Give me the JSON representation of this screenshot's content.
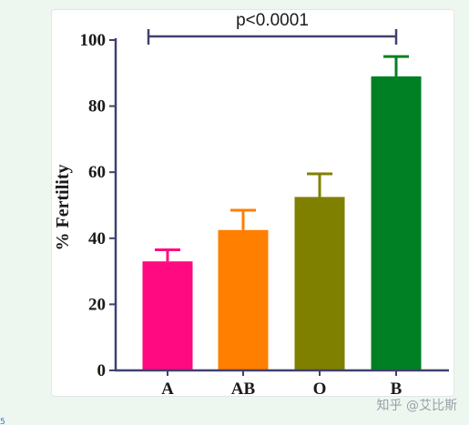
{
  "chart_data": {
    "type": "bar",
    "categories": [
      "A",
      "AB",
      "O",
      "B"
    ],
    "values": [
      33,
      42.5,
      52.5,
      89
    ],
    "errors": [
      3.5,
      6,
      7,
      6
    ],
    "colors": [
      "#ff0a80",
      "#ff7f00",
      "#808000",
      "#008024"
    ],
    "ylabel": "% Fertility",
    "xlabel": "",
    "ylim": [
      0,
      100
    ],
    "yticks": [
      0,
      20,
      40,
      60,
      80,
      100
    ],
    "grid": false,
    "annotation": {
      "text": "p<0.0001",
      "from": "A",
      "to": "B"
    }
  },
  "watermark": "知乎 @艾比斯",
  "edge_mark": "5"
}
